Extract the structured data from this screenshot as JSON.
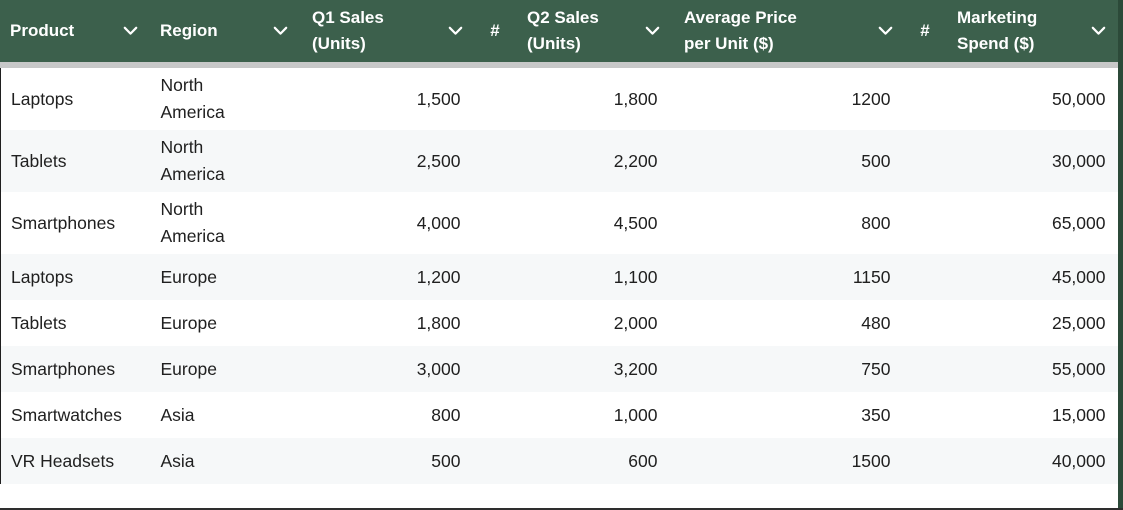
{
  "table": {
    "columns": [
      {
        "label": "Product",
        "align": "left",
        "has_dropdown": true
      },
      {
        "label": "Region",
        "align": "left",
        "has_dropdown": true
      },
      {
        "label": "Q1 Sales (Units)",
        "align": "right",
        "has_dropdown": true
      },
      {
        "label": "#",
        "align": "center",
        "has_dropdown": false
      },
      {
        "label": "Q2 Sales (Units)",
        "align": "right",
        "has_dropdown": true
      },
      {
        "label": "Average Price per Unit ($)",
        "align": "right",
        "has_dropdown": true
      },
      {
        "label": "#",
        "align": "center",
        "has_dropdown": false
      },
      {
        "label": "Marketing Spend ($)",
        "align": "right",
        "has_dropdown": true
      }
    ],
    "rows": [
      [
        "Laptops",
        "North America",
        "1,500",
        "",
        "1,800",
        "1200",
        "",
        "50,000"
      ],
      [
        "Tablets",
        "North America",
        "2,500",
        "",
        "2,200",
        "500",
        "",
        "30,000"
      ],
      [
        "Smartphones",
        "North America",
        "4,000",
        "",
        "4,500",
        "800",
        "",
        "65,000"
      ],
      [
        "Laptops",
        "Europe",
        "1,200",
        "",
        "1,100",
        "1150",
        "",
        "45,000"
      ],
      [
        "Tablets",
        "Europe",
        "1,800",
        "",
        "2,000",
        "480",
        "",
        "25,000"
      ],
      [
        "Smartphones",
        "Europe",
        "3,000",
        "",
        "3,200",
        "750",
        "",
        "55,000"
      ],
      [
        "Smartwatches",
        "Asia",
        "800",
        "",
        "1,000",
        "350",
        "",
        "15,000"
      ],
      [
        "VR Headsets",
        "Asia",
        "500",
        "",
        "600",
        "1500",
        "",
        "40,000"
      ]
    ]
  },
  "colors": {
    "header_background": "#3c604c",
    "header_text": "#ffffff",
    "row_even_background": "#f6f8f9",
    "row_odd_background": "#ffffff",
    "freeze_divider": "#c7c8c8",
    "right_edge_strip": "#2c4a39",
    "body_text": "#202020"
  }
}
